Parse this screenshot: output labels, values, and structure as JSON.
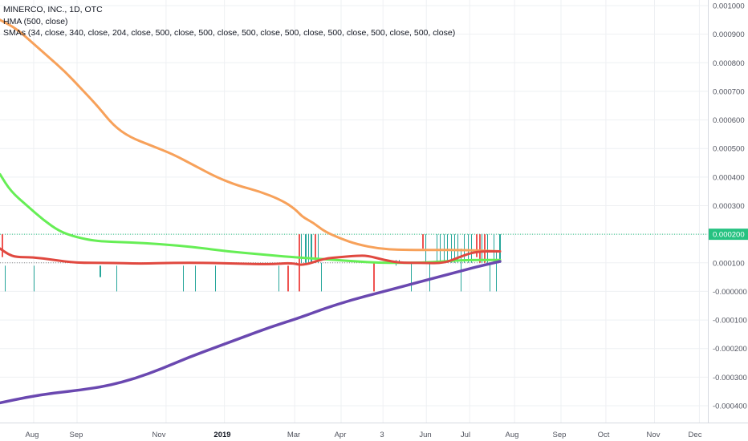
{
  "legend": {
    "title": "MINERCO, INC., 1D, OTC",
    "hma": "HMA (500, close)",
    "smas": "SMAs (34, close, 340, close, 204, close, 500, close, 500, close, 500, close, 500, close, 500, close, 500, close, 500, close)"
  },
  "colors": {
    "orange_sma": "#f7a15a",
    "green_sma": "#66ee55",
    "red_sma": "#e0483f",
    "hma": "#6a48b0",
    "bar_green": "#26a69a",
    "bar_red": "#ef5350",
    "price_line": "#26c281"
  },
  "chart_data": {
    "type": "line",
    "ylim": [
      -0.00045,
      0.00101
    ],
    "y_ticks": [
      "0.001000",
      "0.000900",
      "0.000800",
      "0.000700",
      "0.000600",
      "0.000500",
      "0.000400",
      "0.000300",
      "0.000200",
      "0.000100",
      "-0.000000",
      "-0.000100",
      "-0.000200",
      "-0.000300",
      "-0.000400"
    ],
    "y_tick_values": [
      0.001,
      0.0009,
      0.0008,
      0.0007,
      0.0006,
      0.0005,
      0.0004,
      0.0003,
      0.0002,
      0.0001,
      0.0,
      -0.0001,
      -0.0002,
      -0.0003,
      -0.0004
    ],
    "x_ticks": [
      {
        "label": "Aug",
        "bold": false
      },
      {
        "label": "Sep",
        "bold": false
      },
      {
        "label": "Nov",
        "bold": false
      },
      {
        "label": "2019",
        "bold": true
      },
      {
        "label": "Mar",
        "bold": false
      },
      {
        "label": "Apr",
        "bold": false
      },
      {
        "label": "3",
        "bold": false
      },
      {
        "label": "Jun",
        "bold": false
      },
      {
        "label": "Jul",
        "bold": false
      },
      {
        "label": "Aug",
        "bold": false
      },
      {
        "label": "Sep",
        "bold": false
      },
      {
        "label": "Oct",
        "bold": false
      },
      {
        "label": "Nov",
        "bold": false
      },
      {
        "label": "Dec",
        "bold": false
      }
    ],
    "last_price_label": "0.000200",
    "last_price": 0.0002,
    "grid": true,
    "series": [
      {
        "key": "orange",
        "values": [
          [
            0,
            0.00095
          ],
          [
            0.03,
            0.00092
          ],
          [
            0.06,
            0.00087
          ],
          [
            0.09,
            0.00082
          ],
          [
            0.12,
            0.00077
          ],
          [
            0.15,
            0.00071
          ],
          [
            0.18,
            0.00065
          ],
          [
            0.21,
            0.00058
          ],
          [
            0.24,
            0.00054
          ],
          [
            0.28,
            0.00051
          ],
          [
            0.32,
            0.00048
          ],
          [
            0.36,
            0.00044
          ],
          [
            0.4,
            0.0004
          ],
          [
            0.44,
            0.00037
          ],
          [
            0.48,
            0.00035
          ],
          [
            0.52,
            0.00032
          ],
          [
            0.545,
            0.00029
          ],
          [
            0.56,
            0.00026
          ],
          [
            0.58,
            0.00024
          ],
          [
            0.6,
            0.00021
          ],
          [
            0.63,
            0.000185
          ],
          [
            0.66,
            0.000165
          ],
          [
            0.7,
            0.00015
          ],
          [
            0.74,
            0.000145
          ],
          [
            0.8,
            0.000145
          ],
          [
            0.86,
            0.000145
          ],
          [
            0.925,
            0.00014
          ]
        ]
      },
      {
        "key": "green",
        "values": [
          [
            0,
            0.00041
          ],
          [
            0.02,
            0.00035
          ],
          [
            0.05,
            0.0003
          ],
          [
            0.08,
            0.00025
          ],
          [
            0.11,
            0.00021
          ],
          [
            0.14,
            0.00019
          ],
          [
            0.18,
            0.000175
          ],
          [
            0.24,
            0.000172
          ],
          [
            0.3,
            0.000165
          ],
          [
            0.36,
            0.000155
          ],
          [
            0.42,
            0.00014
          ],
          [
            0.48,
            0.00013
          ],
          [
            0.54,
            0.00012
          ],
          [
            0.58,
            0.000115
          ],
          [
            0.62,
            0.00011
          ],
          [
            0.66,
            0.000105
          ],
          [
            0.7,
            0.0001
          ],
          [
            0.74,
            0.0001
          ],
          [
            0.78,
            0.0001
          ],
          [
            0.82,
            0.000105
          ],
          [
            0.86,
            0.00011
          ],
          [
            0.925,
            0.00011
          ]
        ]
      },
      {
        "key": "red",
        "values": [
          [
            0,
            0.00015
          ],
          [
            0.015,
            0.00013
          ],
          [
            0.03,
            0.00012
          ],
          [
            0.06,
            0.00012
          ],
          [
            0.1,
            0.00011
          ],
          [
            0.14,
            0.0001
          ],
          [
            0.2,
            0.0001
          ],
          [
            0.26,
            9.7e-05
          ],
          [
            0.32,
            0.0001
          ],
          [
            0.38,
            0.0001
          ],
          [
            0.44,
            9.7e-05
          ],
          [
            0.5,
            9.5e-05
          ],
          [
            0.54,
            0.0001
          ],
          [
            0.56,
            9e-05
          ],
          [
            0.6,
            0.000115
          ],
          [
            0.63,
            0.00012
          ],
          [
            0.66,
            0.000125
          ],
          [
            0.68,
            0.000125
          ],
          [
            0.71,
            0.00011
          ],
          [
            0.74,
            0.0001
          ],
          [
            0.78,
            0.0001
          ],
          [
            0.82,
            9.8e-05
          ],
          [
            0.85,
            0.00012
          ],
          [
            0.88,
            0.00014
          ],
          [
            0.925,
            0.00014
          ]
        ]
      },
      {
        "key": "hma",
        "values": [
          [
            0,
            -0.00039
          ],
          [
            0.05,
            -0.00037
          ],
          [
            0.1,
            -0.000355
          ],
          [
            0.15,
            -0.000345
          ],
          [
            0.2,
            -0.00033
          ],
          [
            0.25,
            -0.000305
          ],
          [
            0.3,
            -0.00027
          ],
          [
            0.35,
            -0.00023
          ],
          [
            0.4,
            -0.000195
          ],
          [
            0.45,
            -0.00016
          ],
          [
            0.5,
            -0.000125
          ],
          [
            0.55,
            -9.5e-05
          ],
          [
            0.6,
            -6e-05
          ],
          [
            0.65,
            -3e-05
          ],
          [
            0.7,
            -5e-06
          ],
          [
            0.75,
            2e-05
          ],
          [
            0.8,
            4.5e-05
          ],
          [
            0.85,
            7e-05
          ],
          [
            0.88,
            8.5e-05
          ],
          [
            0.925,
            0.000105
          ]
        ]
      }
    ]
  }
}
